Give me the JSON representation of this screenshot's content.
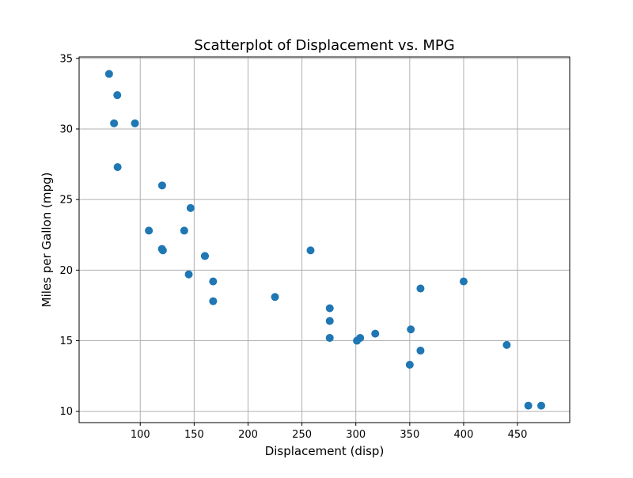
{
  "chart_data": {
    "type": "scatter",
    "title": "Scatterplot of Displacement vs. MPG",
    "xlabel": "Displacement (disp)",
    "ylabel": "Miles per Gallon (mpg)",
    "xlim": [
      43.3,
      498.4
    ],
    "ylim": [
      9.2,
      35.1
    ],
    "xticks": [
      100,
      150,
      200,
      250,
      300,
      350,
      400,
      450
    ],
    "yticks": [
      10,
      15,
      20,
      25,
      30,
      35
    ],
    "grid": true,
    "marker_color": "#1f77b4",
    "points": [
      {
        "x": 160,
        "y": 21.0
      },
      {
        "x": 160,
        "y": 21.0
      },
      {
        "x": 108,
        "y": 22.8
      },
      {
        "x": 258,
        "y": 21.4
      },
      {
        "x": 360,
        "y": 18.7
      },
      {
        "x": 225,
        "y": 18.1
      },
      {
        "x": 360,
        "y": 14.3
      },
      {
        "x": 146.7,
        "y": 24.4
      },
      {
        "x": 140.8,
        "y": 22.8
      },
      {
        "x": 167.6,
        "y": 19.2
      },
      {
        "x": 167.6,
        "y": 17.8
      },
      {
        "x": 275.8,
        "y": 16.4
      },
      {
        "x": 275.8,
        "y": 17.3
      },
      {
        "x": 275.8,
        "y": 15.2
      },
      {
        "x": 472,
        "y": 10.4
      },
      {
        "x": 460,
        "y": 10.4
      },
      {
        "x": 440,
        "y": 14.7
      },
      {
        "x": 78.7,
        "y": 32.4
      },
      {
        "x": 75.7,
        "y": 30.4
      },
      {
        "x": 71.1,
        "y": 33.9
      },
      {
        "x": 120.1,
        "y": 21.5
      },
      {
        "x": 318,
        "y": 15.5
      },
      {
        "x": 304,
        "y": 15.2
      },
      {
        "x": 350,
        "y": 13.3
      },
      {
        "x": 400,
        "y": 19.2
      },
      {
        "x": 79,
        "y": 27.3
      },
      {
        "x": 120.3,
        "y": 26.0
      },
      {
        "x": 95.1,
        "y": 30.4
      },
      {
        "x": 351,
        "y": 15.8
      },
      {
        "x": 145,
        "y": 19.7
      },
      {
        "x": 301,
        "y": 15.0
      },
      {
        "x": 121,
        "y": 21.4
      }
    ]
  }
}
